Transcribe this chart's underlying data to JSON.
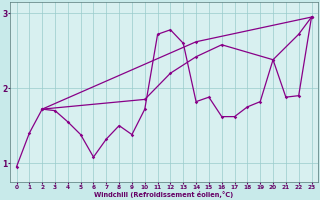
{
  "xlabel": "Windchill (Refroidissement éolien,°C)",
  "xlim": [
    -0.5,
    23.5
  ],
  "ylim": [
    0.75,
    3.15
  ],
  "yticks": [
    1,
    2,
    3
  ],
  "xticks": [
    0,
    1,
    2,
    3,
    4,
    5,
    6,
    7,
    8,
    9,
    10,
    11,
    12,
    13,
    14,
    15,
    16,
    17,
    18,
    19,
    20,
    21,
    22,
    23
  ],
  "bg_color": "#c8eaea",
  "plot_bg": "#d8f0f0",
  "line_color": "#880088",
  "grid_color": "#99cccc",
  "tick_color": "#660066",
  "label_color": "#660066",
  "series1": [
    [
      0,
      0.95
    ],
    [
      1,
      1.4
    ],
    [
      2,
      1.72
    ],
    [
      3,
      1.7
    ],
    [
      4,
      1.55
    ],
    [
      5,
      1.38
    ],
    [
      6,
      1.08
    ],
    [
      7,
      1.32
    ],
    [
      8,
      1.5
    ],
    [
      9,
      1.38
    ],
    [
      10,
      1.72
    ],
    [
      11,
      2.72
    ],
    [
      12,
      2.78
    ],
    [
      13,
      2.6
    ],
    [
      14,
      1.82
    ],
    [
      15,
      1.88
    ],
    [
      16,
      1.62
    ],
    [
      17,
      1.62
    ],
    [
      18,
      1.75
    ],
    [
      19,
      1.82
    ],
    [
      20,
      2.38
    ],
    [
      21,
      1.88
    ],
    [
      22,
      1.9
    ],
    [
      23,
      2.95
    ]
  ],
  "series2": [
    [
      2,
      1.72
    ],
    [
      10,
      1.85
    ],
    [
      12,
      2.2
    ],
    [
      14,
      2.42
    ],
    [
      16,
      2.58
    ],
    [
      20,
      2.38
    ],
    [
      22,
      2.72
    ],
    [
      23,
      2.95
    ]
  ],
  "series3": [
    [
      2,
      1.72
    ],
    [
      14,
      2.62
    ],
    [
      23,
      2.95
    ]
  ]
}
